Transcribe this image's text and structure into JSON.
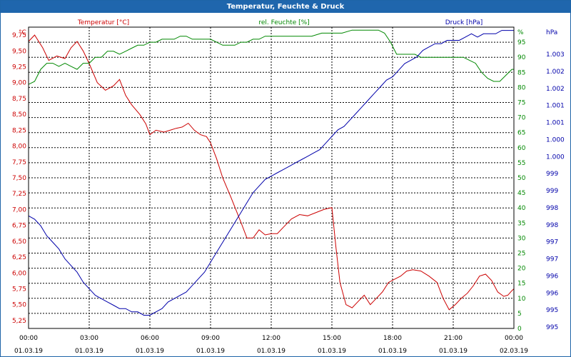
{
  "window": {
    "title": "Temperatur, Feuchte & Druck"
  },
  "colors": {
    "temperature": "#cc0000",
    "humidity": "#008800",
    "pressure": "#0000aa",
    "grid": "#000000",
    "axis_text": "#000000"
  },
  "chart_data": {
    "type": "line",
    "title": "Temperatur, Feuchte & Druck",
    "grid": true,
    "x_ticks": [
      {
        "time": "00:00",
        "date": "01.03.19"
      },
      {
        "time": "03:00",
        "date": "01.03.19"
      },
      {
        "time": "06:00",
        "date": "01.03.19"
      },
      {
        "time": "09:00",
        "date": "01.03.19"
      },
      {
        "time": "12:00",
        "date": "01.03.19"
      },
      {
        "time": "15:00",
        "date": "01.03.19"
      },
      {
        "time": "18:00",
        "date": "01.03.19"
      },
      {
        "time": "21:00",
        "date": "01.03.19"
      },
      {
        "time": "00:00",
        "date": "02.03.19"
      }
    ],
    "xlim": [
      0,
      24
    ],
    "axes": {
      "temperature": {
        "label": "Temperatur [°C]",
        "unit": "°C",
        "ylim": [
          5.125,
          9.875
        ],
        "ticks": [
          "9,75",
          "9,50",
          "9,25",
          "9,00",
          "8,75",
          "8,50",
          "8,25",
          "8,00",
          "7,75",
          "7,50",
          "7,25",
          "7,00",
          "6,75",
          "6,50",
          "6,25",
          "6,00",
          "5,75",
          "5,50",
          "5,25"
        ]
      },
      "humidity": {
        "label": "rel. Feuchte [%]",
        "unit": "%",
        "ylim": [
          0,
          100
        ],
        "ticks": [
          "95",
          "90",
          "85",
          "80",
          "75",
          "70",
          "65",
          "60",
          "55",
          "50",
          "45",
          "40",
          "35",
          "30",
          "25",
          "20",
          "15",
          "10",
          "5",
          "0"
        ]
      },
      "pressure": {
        "label": "Druck [hPa]",
        "unit": "hPa",
        "ylim": [
          994.5,
          1003.6
        ],
        "ticks": [
          "1.003",
          "1.002",
          "1.002",
          "1.001",
          "1.001",
          "1.000",
          "1.000",
          "999",
          "999",
          "998",
          "998",
          "997",
          "997",
          "996",
          "996",
          "995",
          "995"
        ]
      }
    },
    "series": [
      {
        "name": "Temperatur",
        "axis": "temperature",
        "x": [
          0,
          0.3,
          0.7,
          1.0,
          1.4,
          1.8,
          2.1,
          2.4,
          2.7,
          3.0,
          3.4,
          3.8,
          4.2,
          4.5,
          4.8,
          5.1,
          5.5,
          5.8,
          6.0,
          6.3,
          6.7,
          7.0,
          7.3,
          7.6,
          7.9,
          8.2,
          8.5,
          8.8,
          9.0,
          9.3,
          9.6,
          10.0,
          10.5,
          10.8,
          11.1,
          11.4,
          11.7,
          12.0,
          12.3,
          12.6,
          13.0,
          13.4,
          13.8,
          14.2,
          14.6,
          15.0,
          15.2,
          15.4,
          15.7,
          16.0,
          16.3,
          16.6,
          16.9,
          17.2,
          17.5,
          17.8,
          18.1,
          18.4,
          18.7,
          19.0,
          19.4,
          19.8,
          20.2,
          20.5,
          20.8,
          21.1,
          21.4,
          21.7,
          22.0,
          22.3,
          22.6,
          22.9,
          23.2,
          23.5,
          23.7,
          23.9,
          24.0
        ],
        "values": [
          9.65,
          9.75,
          9.55,
          9.35,
          9.42,
          9.38,
          9.55,
          9.65,
          9.5,
          9.3,
          9.0,
          8.88,
          8.95,
          9.05,
          8.8,
          8.65,
          8.5,
          8.35,
          8.18,
          8.25,
          8.22,
          8.25,
          8.28,
          8.3,
          8.36,
          8.25,
          8.18,
          8.15,
          8.05,
          7.8,
          7.5,
          7.2,
          6.8,
          6.55,
          6.55,
          6.68,
          6.6,
          6.62,
          6.62,
          6.72,
          6.85,
          6.92,
          6.9,
          6.95,
          7.0,
          7.03,
          6.4,
          5.85,
          5.5,
          5.45,
          5.55,
          5.65,
          5.5,
          5.6,
          5.7,
          5.85,
          5.9,
          5.95,
          6.03,
          6.05,
          6.03,
          5.95,
          5.85,
          5.6,
          5.42,
          5.5,
          5.6,
          5.68,
          5.8,
          5.95,
          5.98,
          5.88,
          5.7,
          5.63,
          5.65,
          5.72,
          5.75
        ]
      },
      {
        "name": "rel. Feuchte",
        "axis": "humidity",
        "x": [
          0,
          0.3,
          0.6,
          0.9,
          1.2,
          1.5,
          1.8,
          2.1,
          2.4,
          2.7,
          3.0,
          3.3,
          3.6,
          3.9,
          4.2,
          4.5,
          4.8,
          5.1,
          5.4,
          5.7,
          6.0,
          6.3,
          6.6,
          6.9,
          7.2,
          7.5,
          7.8,
          8.1,
          8.4,
          8.7,
          9.0,
          9.3,
          9.6,
          9.9,
          10.2,
          10.5,
          10.8,
          11.1,
          11.4,
          11.7,
          12.0,
          12.5,
          13.0,
          13.5,
          14.0,
          14.5,
          15.0,
          15.5,
          16.0,
          16.5,
          17.0,
          17.3,
          17.6,
          17.9,
          18.2,
          18.5,
          18.8,
          19.1,
          19.4,
          19.7,
          20.0,
          20.3,
          20.6,
          20.9,
          21.2,
          21.5,
          21.8,
          22.1,
          22.4,
          22.7,
          23.0,
          23.3,
          23.6,
          23.9,
          24.0
        ],
        "values": [
          81,
          82,
          86,
          88,
          88,
          87,
          88,
          87,
          86,
          88,
          88,
          90,
          90,
          92,
          92,
          91,
          92,
          93,
          94,
          94,
          95,
          95,
          96,
          96,
          96,
          97,
          97,
          96,
          96,
          96,
          96,
          95,
          94,
          94,
          94,
          95,
          95,
          96,
          96,
          97,
          97,
          97,
          97,
          97,
          97,
          98,
          98,
          98,
          99,
          99,
          99,
          99,
          98,
          95,
          91,
          91,
          91,
          91,
          90,
          90,
          90,
          90,
          90,
          90,
          90,
          90,
          89,
          88,
          85,
          83,
          82,
          82,
          84,
          86,
          86
        ]
      },
      {
        "name": "Druck",
        "axis": "pressure",
        "x": [
          0,
          0.3,
          0.6,
          0.9,
          1.2,
          1.5,
          1.8,
          2.1,
          2.4,
          2.7,
          3.0,
          3.3,
          3.6,
          3.9,
          4.2,
          4.5,
          4.8,
          5.1,
          5.4,
          5.7,
          6.0,
          6.3,
          6.6,
          6.9,
          7.2,
          7.5,
          7.8,
          8.1,
          8.4,
          8.7,
          9.0,
          9.3,
          9.6,
          9.9,
          10.2,
          10.5,
          10.8,
          11.1,
          11.4,
          11.7,
          12.0,
          12.3,
          12.6,
          12.9,
          13.2,
          13.5,
          13.8,
          14.1,
          14.4,
          14.7,
          15.0,
          15.3,
          15.6,
          15.9,
          16.2,
          16.5,
          16.8,
          17.1,
          17.4,
          17.7,
          18.0,
          18.3,
          18.6,
          18.9,
          19.2,
          19.5,
          19.8,
          20.1,
          20.4,
          20.7,
          21.0,
          21.3,
          21.6,
          21.9,
          22.2,
          22.5,
          22.8,
          23.1,
          23.4,
          23.7,
          24.0
        ],
        "values": [
          997.9,
          997.8,
          997.6,
          997.3,
          997.1,
          996.9,
          996.6,
          996.4,
          996.2,
          995.9,
          995.7,
          995.5,
          995.4,
          995.3,
          995.2,
          995.1,
          995.1,
          995.0,
          995.0,
          994.9,
          994.9,
          995.0,
          995.1,
          995.3,
          995.4,
          995.5,
          995.6,
          995.8,
          996.0,
          996.2,
          996.5,
          996.8,
          997.1,
          997.4,
          997.7,
          998.0,
          998.3,
          998.6,
          998.8,
          999.0,
          999.1,
          999.2,
          999.3,
          999.4,
          999.5,
          999.6,
          999.7,
          999.8,
          999.9,
          1000.1,
          1000.3,
          1000.5,
          1000.6,
          1000.8,
          1001.0,
          1001.2,
          1001.4,
          1001.6,
          1001.8,
          1002.0,
          1002.1,
          1002.3,
          1002.5,
          1002.6,
          1002.7,
          1002.9,
          1003.0,
          1003.1,
          1003.1,
          1003.2,
          1003.2,
          1003.2,
          1003.3,
          1003.4,
          1003.3,
          1003.4,
          1003.4,
          1003.4,
          1003.5,
          1003.5,
          1003.5
        ]
      }
    ]
  }
}
